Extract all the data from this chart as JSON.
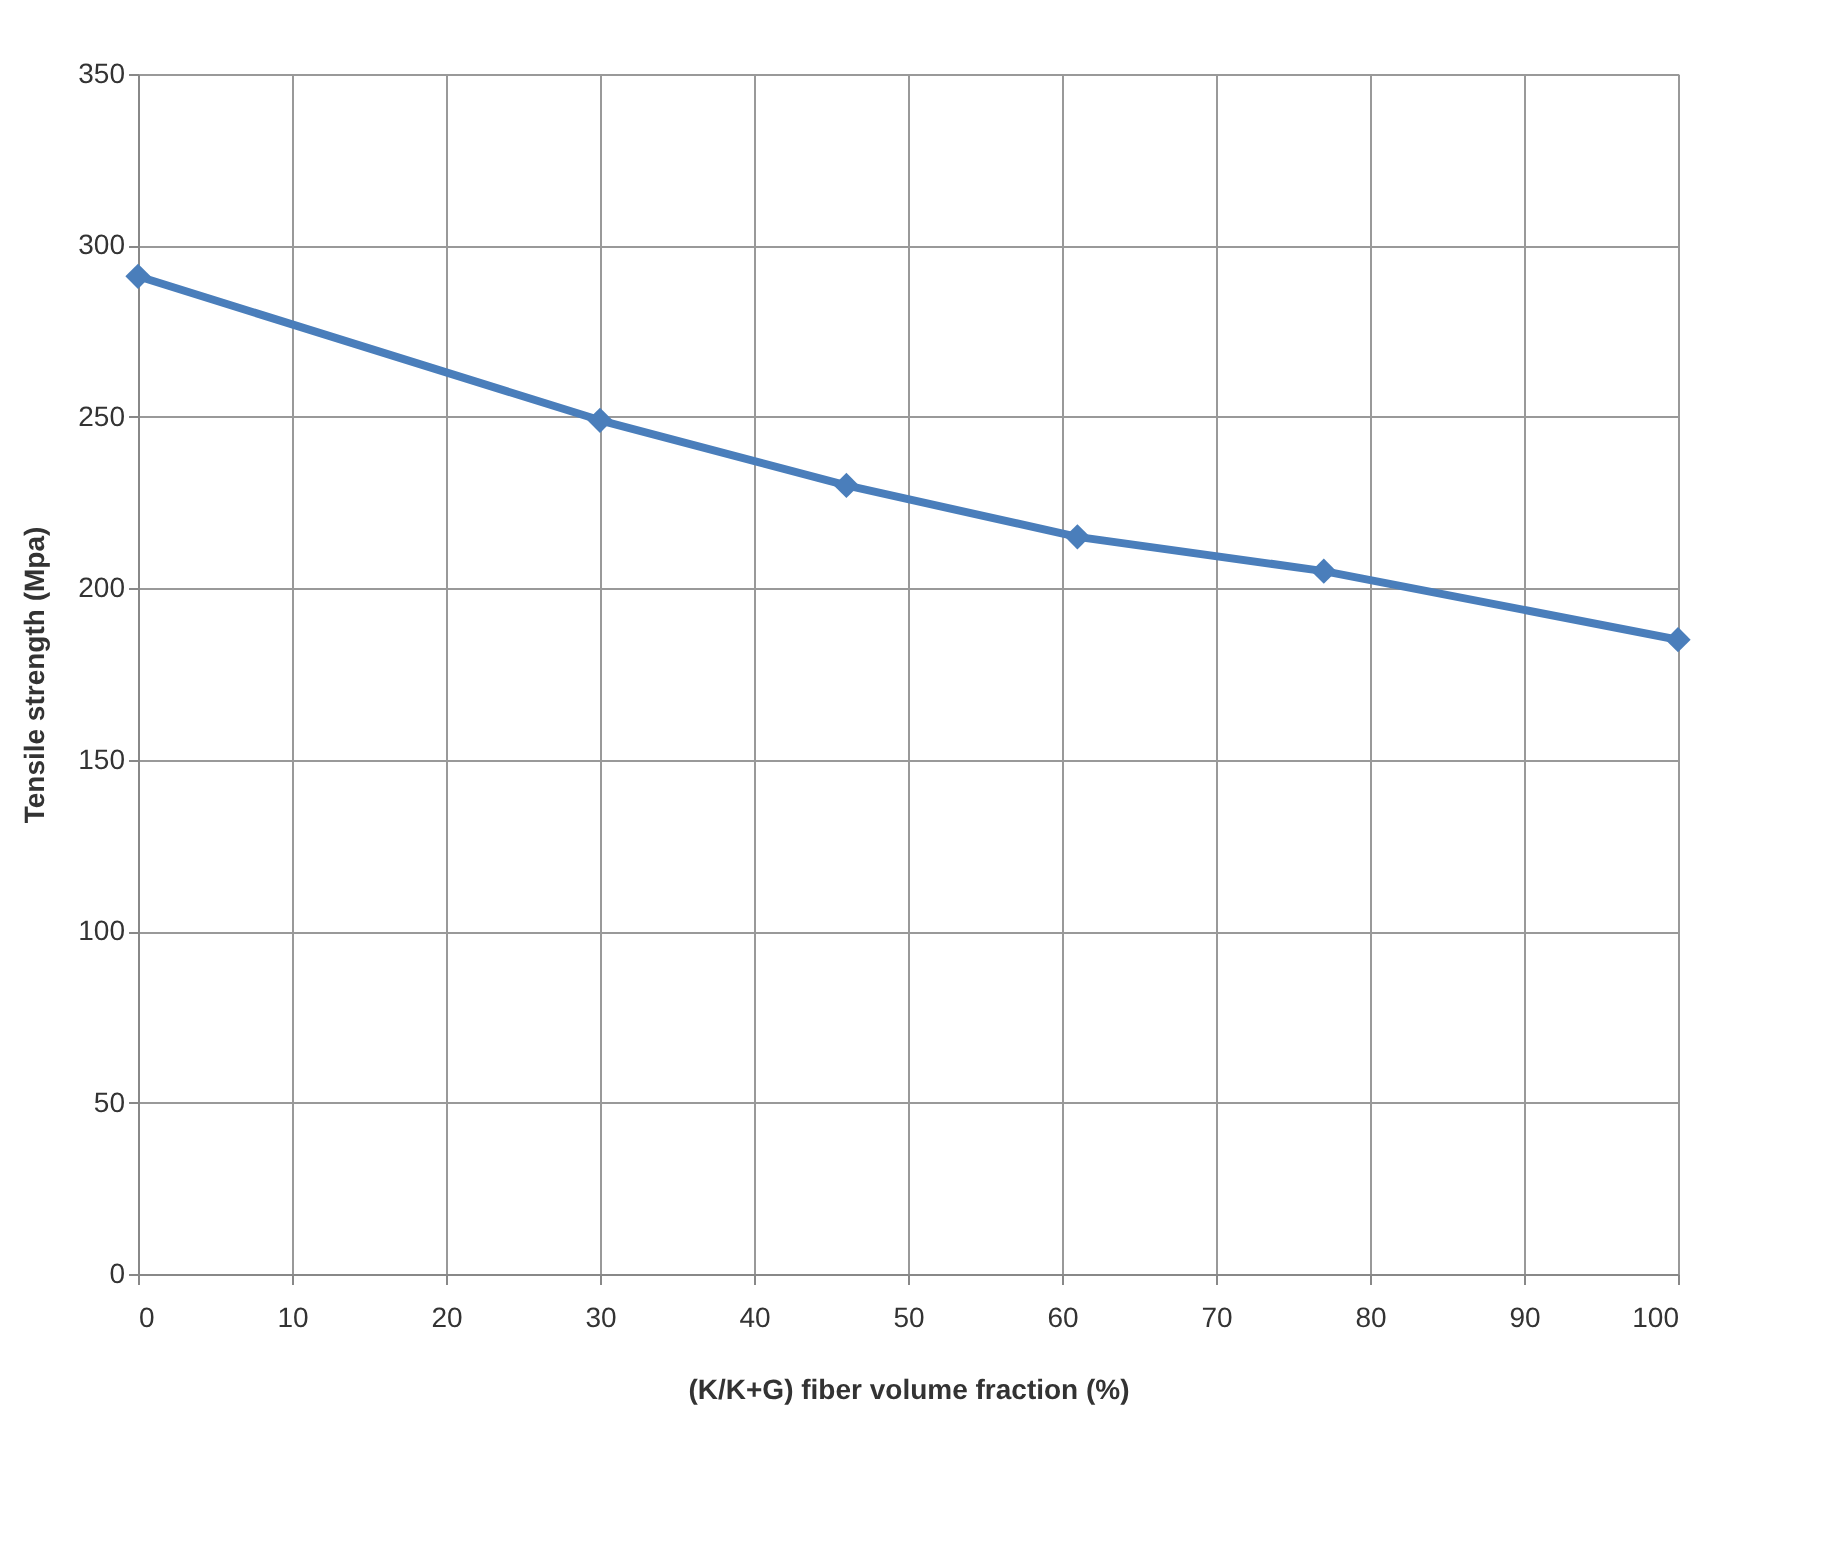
{
  "chart_data": {
    "type": "line",
    "xlabel": "(K/K+G) fiber volume fraction (%)",
    "ylabel": "Tensile strength (Mpa)",
    "x": [
      0,
      30,
      46,
      61,
      77,
      100
    ],
    "series": [
      {
        "color": "#4a7ebb",
        "values": [
          291,
          249,
          230,
          215,
          205,
          185
        ]
      }
    ],
    "xlim": [
      0,
      100
    ],
    "xticks": [
      0,
      10,
      20,
      30,
      40,
      50,
      60,
      70,
      80,
      90,
      100
    ],
    "ylim": [
      0,
      350
    ],
    "yticks": [
      0,
      50,
      100,
      150,
      200,
      250,
      300,
      350
    ],
    "grid": true,
    "marker": "diamond",
    "line_style": "solid"
  }
}
